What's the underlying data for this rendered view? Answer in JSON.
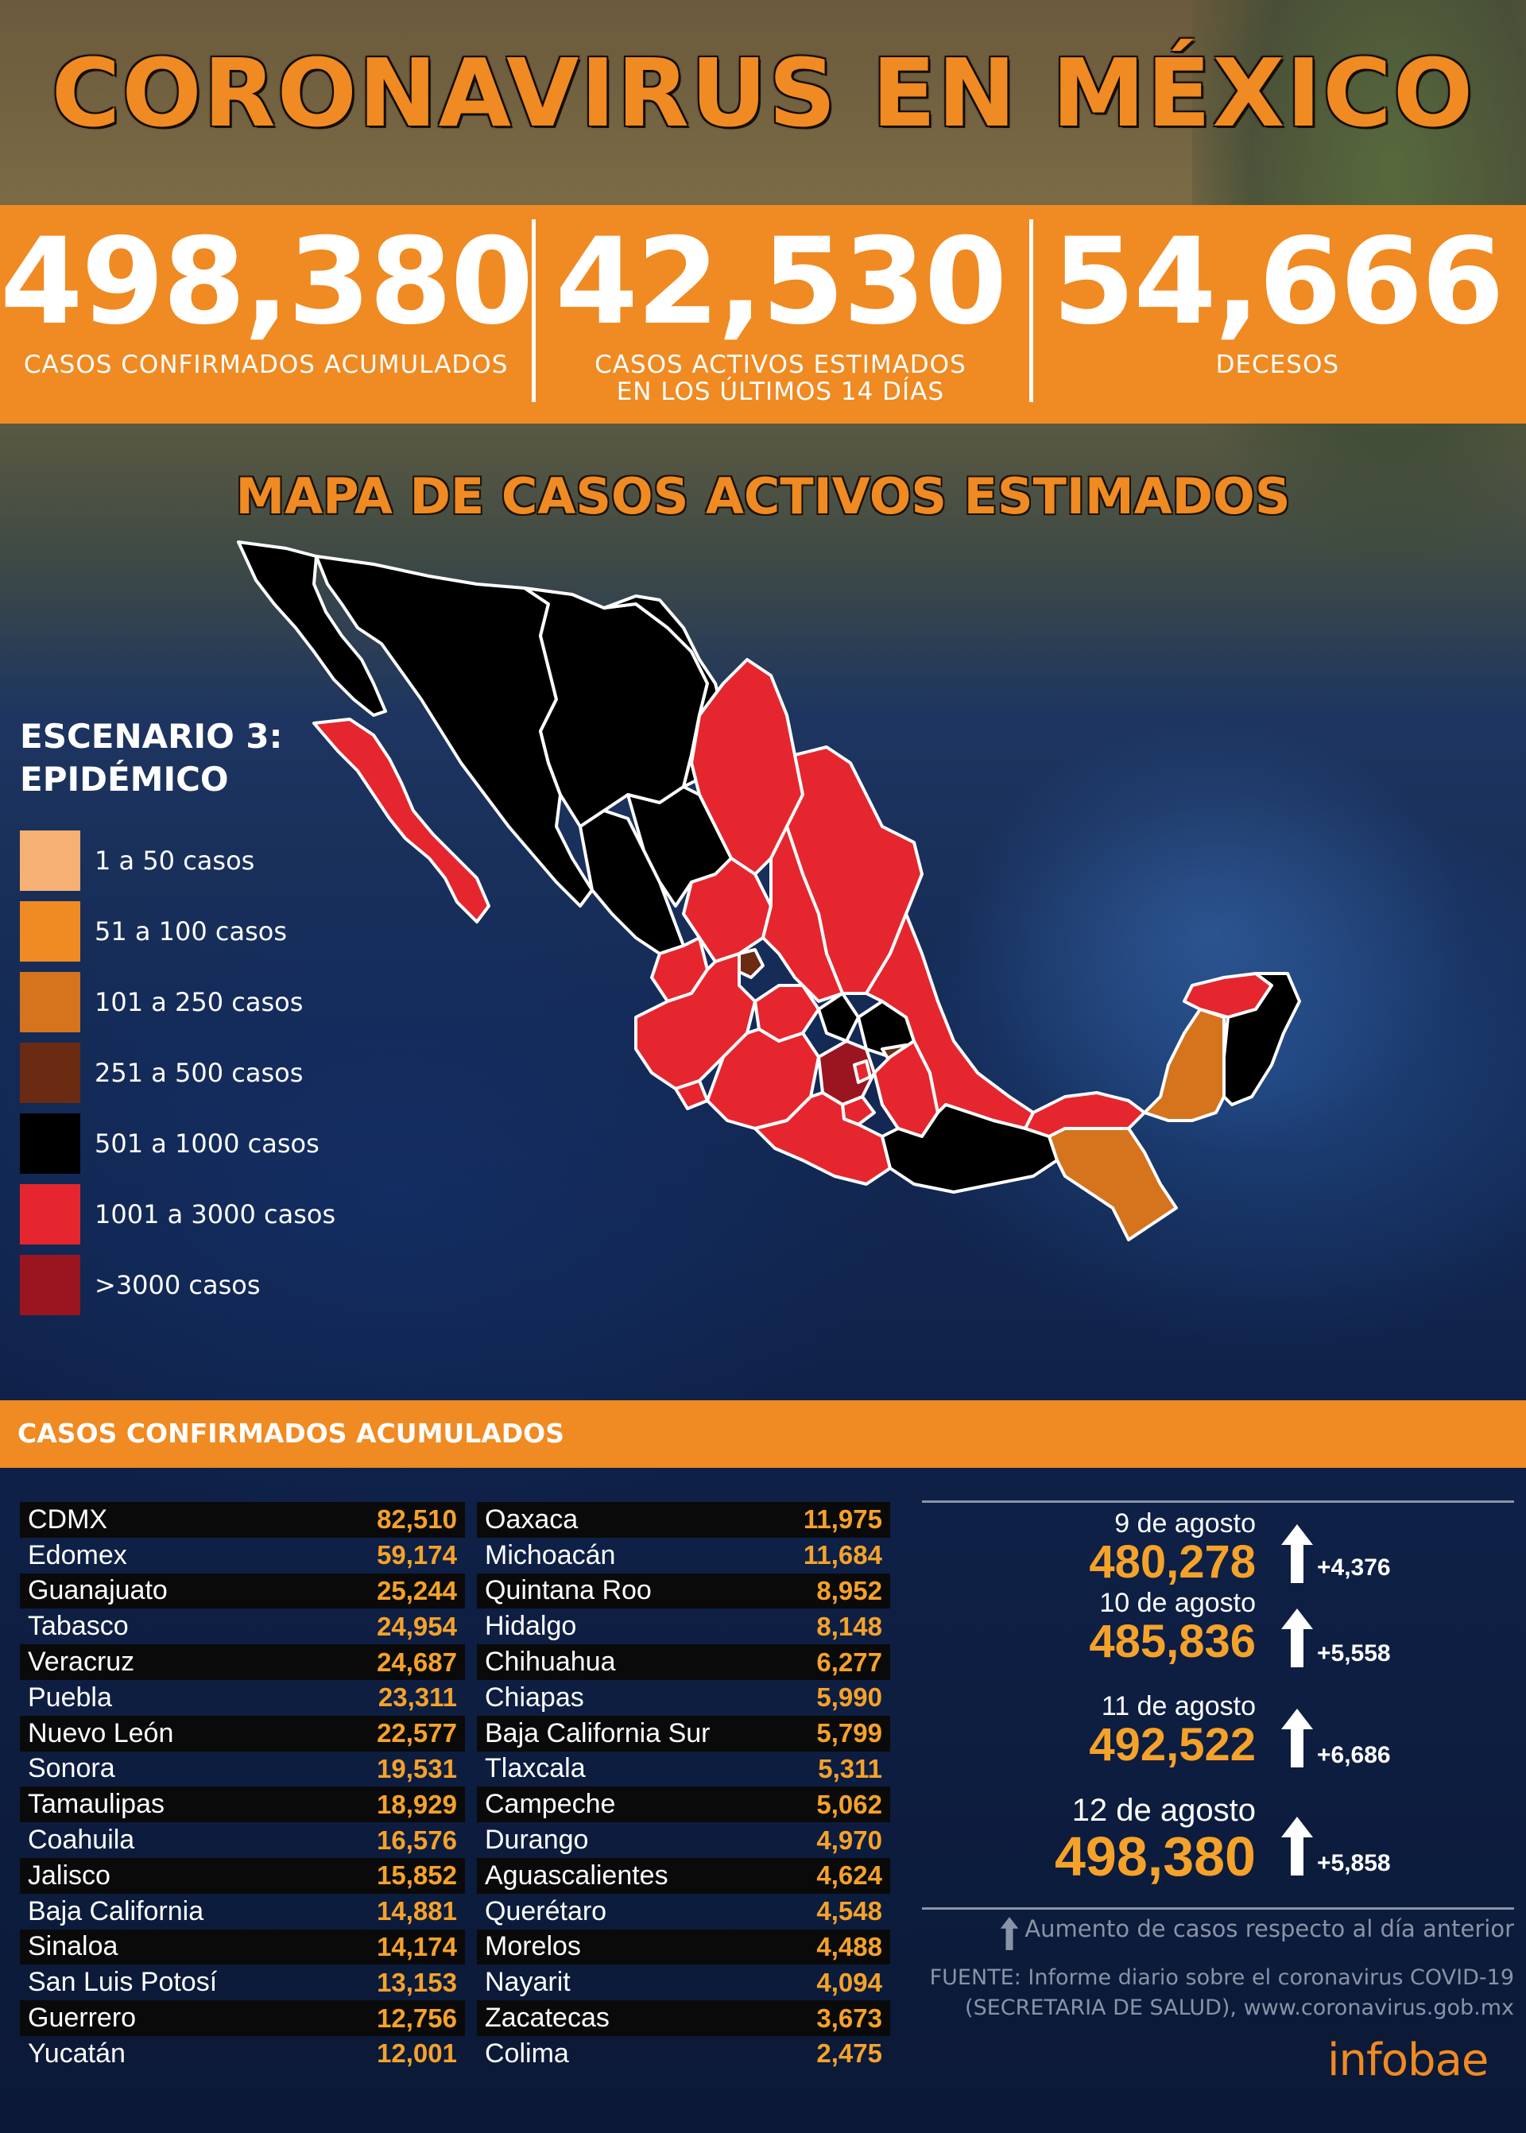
{
  "title": "CORONAVIRUS EN MÉXICO",
  "stats": [
    {
      "value": "498,380",
      "label": "CASOS CONFIRMADOS ACUMULADOS"
    },
    {
      "value": "42,530",
      "label": "CASOS ACTIVOS ESTIMADOS\nEN LOS ÚLTIMOS 14 DÍAS"
    },
    {
      "value": "54,666",
      "label": "DECESOS"
    }
  ],
  "map": {
    "title": "MAPA DE CASOS ACTIVOS ESTIMADOS",
    "legend_title": "ESCENARIO 3:\nEPIDÉMICO",
    "legend": [
      {
        "label": "1 a 50 casos",
        "color": "#f7b073"
      },
      {
        "label": "51 a 100 casos",
        "color": "#f08a22"
      },
      {
        "label": "101 a 250 casos",
        "color": "#d5741d"
      },
      {
        "label": "251 a 500 casos",
        "color": "#6b2a12"
      },
      {
        "label": "501 a 1000 casos",
        "color": "#000000"
      },
      {
        "label": "1001 a 3000 casos",
        "color": "#e5262e"
      },
      {
        "label": ">3000 casos",
        "color": "#9b1520"
      }
    ]
  },
  "table": {
    "title": "CASOS CONFIRMADOS ACUMULADOS",
    "col1": [
      {
        "name": "CDMX",
        "value": "82,510"
      },
      {
        "name": "Edomex",
        "value": "59,174"
      },
      {
        "name": "Guanajuato",
        "value": "25,244"
      },
      {
        "name": "Tabasco",
        "value": "24,954"
      },
      {
        "name": "Veracruz",
        "value": "24,687"
      },
      {
        "name": "Puebla",
        "value": "23,311"
      },
      {
        "name": "Nuevo León",
        "value": "22,577"
      },
      {
        "name": "Sonora",
        "value": "19,531"
      },
      {
        "name": "Tamaulipas",
        "value": "18,929"
      },
      {
        "name": "Coahuila",
        "value": "16,576"
      },
      {
        "name": "Jalisco",
        "value": "15,852"
      },
      {
        "name": "Baja California",
        "value": "14,881"
      },
      {
        "name": "Sinaloa",
        "value": "14,174"
      },
      {
        "name": "San Luis Potosí",
        "value": "13,153"
      },
      {
        "name": "Guerrero",
        "value": "12,756"
      },
      {
        "name": "Yucatán",
        "value": "12,001"
      }
    ],
    "col2": [
      {
        "name": "Oaxaca",
        "value": "11,975"
      },
      {
        "name": "Michoacán",
        "value": "11,684"
      },
      {
        "name": "Quintana Roo",
        "value": "8,952"
      },
      {
        "name": "Hidalgo",
        "value": "8,148"
      },
      {
        "name": "Chihuahua",
        "value": "6,277"
      },
      {
        "name": "Chiapas",
        "value": "5,990"
      },
      {
        "name": "Baja California Sur",
        "value": "5,799"
      },
      {
        "name": "Tlaxcala",
        "value": "5,311"
      },
      {
        "name": "Campeche",
        "value": "5,062"
      },
      {
        "name": "Durango",
        "value": "4,970"
      },
      {
        "name": "Aguascalientes",
        "value": "4,624"
      },
      {
        "name": "Querétaro",
        "value": "4,548"
      },
      {
        "name": "Morelos",
        "value": "4,488"
      },
      {
        "name": "Nayarit",
        "value": "4,094"
      },
      {
        "name": "Zacatecas",
        "value": "3,673"
      },
      {
        "name": "Colima",
        "value": "2,475"
      }
    ]
  },
  "timeline": [
    {
      "date": "9 de agosto",
      "value": "480,278",
      "increase": "+4,376"
    },
    {
      "date": "10 de agosto",
      "value": "485,836",
      "increase": "+5,558"
    },
    {
      "date": "11 de agosto",
      "value": "492,522",
      "increase": "+6,686"
    },
    {
      "date": "12 de agosto",
      "value": "498,380",
      "increase": "+5,858"
    }
  ],
  "note": "Aumento de casos respecto al día anterior",
  "source": "FUENTE:  Informe diario sobre el coronavirus COVID-19\n(SECRETARIA DE SALUD), www.coronavirus.gob.mx",
  "logo": "infobae"
}
